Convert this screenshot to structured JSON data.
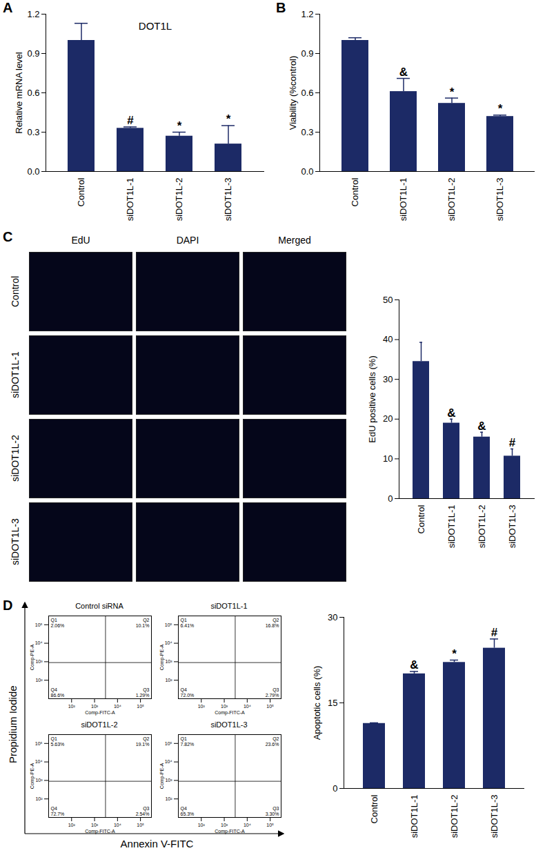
{
  "chart_data": [
    {
      "panel": "A",
      "type": "bar",
      "title": "DOT1L",
      "y_label": "Relative mRNA level",
      "categories": [
        "Control",
        "siDOT1L-1",
        "siDOT1L-2",
        "siDOT1L-3"
      ],
      "values": [
        1.0,
        0.33,
        0.27,
        0.21
      ],
      "errors": [
        0.13,
        0.01,
        0.03,
        0.14
      ],
      "annotations": [
        null,
        "#",
        "*",
        "*"
      ],
      "color": "#1c2a66",
      "ylim": [
        0,
        1.2
      ],
      "yticks": [
        0,
        0.3,
        0.6,
        0.9,
        1.2
      ]
    },
    {
      "panel": "B",
      "type": "bar",
      "y_label": "Viability (%control)",
      "categories": [
        "Control",
        "siDOT1L-1",
        "siDOT1L-2",
        "siDOT1L-3"
      ],
      "values": [
        1.0,
        0.61,
        0.52,
        0.42
      ],
      "errors": [
        0.02,
        0.1,
        0.04,
        0.01
      ],
      "annotations": [
        null,
        "&",
        "*",
        "*"
      ],
      "color": "#1c2a66",
      "ylim": [
        0,
        1.2
      ],
      "yticks": [
        0,
        0.3,
        0.6,
        0.9,
        1.2
      ]
    },
    {
      "panel": "C",
      "type": "bar",
      "y_label": "EdU positive cells (%)",
      "categories": [
        "Control",
        "siDOT1L-1",
        "siDOT1L-2",
        "siDOT1L-3"
      ],
      "values": [
        34.5,
        19,
        15.5,
        10.7
      ],
      "errors": [
        4.8,
        1,
        1.2,
        1.8
      ],
      "annotations": [
        null,
        "&",
        "&",
        "#"
      ],
      "color": "#1c2a66",
      "ylim": [
        0,
        50
      ],
      "yticks": [
        0,
        10,
        20,
        30,
        40,
        50
      ]
    },
    {
      "panel": "D",
      "type": "bar",
      "y_label": "Apoptotic cells (%)",
      "categories": [
        "Control",
        "siDOT1L-1",
        "siDOT1L-2",
        "siDOT1L-3"
      ],
      "values": [
        11.4,
        20.1,
        22.1,
        24.6
      ],
      "errors": [
        0.1,
        0.4,
        0.4,
        1.6
      ],
      "annotations": [
        null,
        "&",
        "*",
        "#"
      ],
      "color": "#1c2a66",
      "ylim": [
        0,
        30
      ],
      "yticks": [
        0,
        15,
        30
      ]
    }
  ],
  "panel_C_images": {
    "columns": [
      "EdU",
      "DAPI",
      "Merged"
    ],
    "rows": [
      "Control",
      "siDOT1L-1",
      "siDOT1L-2",
      "siDOT1L-3"
    ]
  },
  "panel_D_flow": {
    "y_outer_label": "Propidium Iodide",
    "x_outer_label": "Annexin V-FITC",
    "x_label": "Comp-FITC-A",
    "y_label": "Comp-PE-A",
    "log": true,
    "xlim": [
      10,
      300000
    ],
    "ylim": [
      10,
      300000
    ],
    "xticks": [
      {
        "value": 100,
        "label": "10²"
      },
      {
        "value": 1000,
        "label": "10³"
      },
      {
        "value": 10000,
        "label": "10⁴"
      },
      {
        "value": 100000,
        "label": "10⁵"
      }
    ],
    "yticks": [
      {
        "value": 100,
        "label": "10²"
      },
      {
        "value": 1000,
        "label": "10³"
      },
      {
        "value": 10000,
        "label": "10⁴"
      },
      {
        "value": 100000,
        "label": "10⁵"
      }
    ],
    "gates": [
      3000,
      900
    ],
    "plots": [
      {
        "title": "Control siRNA",
        "quadrants": [
          {
            "name": "Q1",
            "percent": "2.06%"
          },
          {
            "name": "Q2",
            "percent": "10.1%"
          },
          {
            "name": "Q3",
            "percent": "1.29%"
          },
          {
            "name": "Q4",
            "percent": "86.6%"
          }
        ]
      },
      {
        "title": "siDOT1L-1",
        "quadrants": [
          {
            "name": "Q1",
            "percent": "6.41%"
          },
          {
            "name": "Q2",
            "percent": "16.8%"
          },
          {
            "name": "Q3",
            "percent": "2.79%"
          },
          {
            "name": "Q4",
            "percent": "72.0%"
          }
        ]
      },
      {
        "title": "siDOT1L-2",
        "quadrants": [
          {
            "name": "Q1",
            "percent": "5.63%"
          },
          {
            "name": "Q2",
            "percent": "19.1%"
          },
          {
            "name": "Q3",
            "percent": "2.54%"
          },
          {
            "name": "Q4",
            "percent": "72.7%"
          }
        ]
      },
      {
        "title": "siDOT1L-3",
        "quadrants": [
          {
            "name": "Q1",
            "percent": "7.82%"
          },
          {
            "name": "Q2",
            "percent": "23.6%"
          },
          {
            "name": "Q3",
            "percent": "3.30%"
          },
          {
            "name": "Q4",
            "percent": "65.3%"
          }
        ]
      }
    ]
  }
}
